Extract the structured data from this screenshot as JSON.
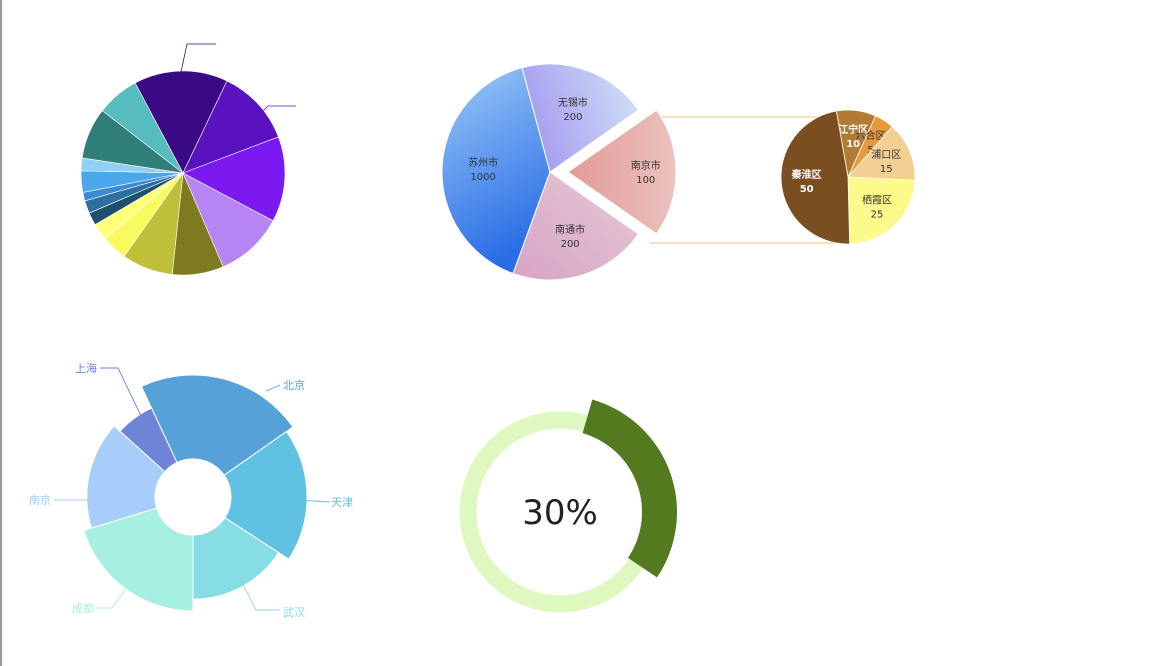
{
  "chart_data": [
    {
      "type": "pie",
      "id": "color-pie",
      "slices": [
        {
          "value": 11,
          "color": "#3a0a84"
        },
        {
          "value": 9,
          "color": "#5a12c0"
        },
        {
          "value": 10,
          "color": "#7a19f0"
        },
        {
          "value": 8,
          "color": "#b784f3"
        },
        {
          "value": 6,
          "color": "#7e7a20"
        },
        {
          "value": 6,
          "color": "#c0bf39"
        },
        {
          "value": 3,
          "color": "#f9fa60"
        },
        {
          "value": 2,
          "color": "#ffff7a"
        },
        {
          "value": 1.5,
          "color": "#1f4f6e"
        },
        {
          "value": 1.5,
          "color": "#2e6f9e"
        },
        {
          "value": 1,
          "color": "#3a8bd0"
        },
        {
          "value": 2.5,
          "color": "#4aa8ea"
        },
        {
          "value": 1.5,
          "color": "#8fd0f3"
        },
        {
          "value": 6,
          "color": "#2f7e79"
        },
        {
          "value": 5,
          "color": "#57bcbd"
        }
      ]
    },
    {
      "type": "pie",
      "id": "city-pie",
      "slices": [
        {
          "name": "苏州市",
          "value": 1000,
          "color": "#5ea6f0"
        },
        {
          "name": "无锡市",
          "value": 200,
          "color": "#b6b1f3"
        },
        {
          "name": "南京市",
          "value": 100,
          "color": "#e6aaa6",
          "exploded": true
        },
        {
          "name": "南通市",
          "value": 200,
          "color": "#d9b4cc"
        }
      ]
    },
    {
      "type": "pie",
      "id": "nanjing-districts",
      "slices": [
        {
          "name": "江宁区",
          "value": 10,
          "color": "#b27a33"
        },
        {
          "name": "六合区",
          "value": 5,
          "color": "#e69a3c"
        },
        {
          "name": "浦口区",
          "value": 15,
          "color": "#f3cf93"
        },
        {
          "name": "栖霞区",
          "value": 25,
          "color": "#fcfa8a"
        },
        {
          "name": "秦淮区",
          "value": 50,
          "color": "#7a4e1f"
        }
      ]
    },
    {
      "type": "pie",
      "id": "rose-chart",
      "slices": [
        {
          "name": "北京",
          "value": 10,
          "color": "#55a1d8"
        },
        {
          "name": "天津",
          "value": 9,
          "color": "#5fc2e3"
        },
        {
          "name": "武汉",
          "value": 7.5,
          "color": "#86dde3"
        },
        {
          "name": "成都",
          "value": 9,
          "color": "#a7efe2"
        },
        {
          "name": "南京",
          "value": 8,
          "color": "#a7cdfa"
        },
        {
          "name": "上海",
          "value": 7,
          "color": "#6d84d9"
        }
      ]
    },
    {
      "type": "pie",
      "id": "progress-gauge",
      "value": 30,
      "label": "30%",
      "colors": {
        "fill": "#537a1f",
        "track": "#dff8bf"
      }
    }
  ]
}
